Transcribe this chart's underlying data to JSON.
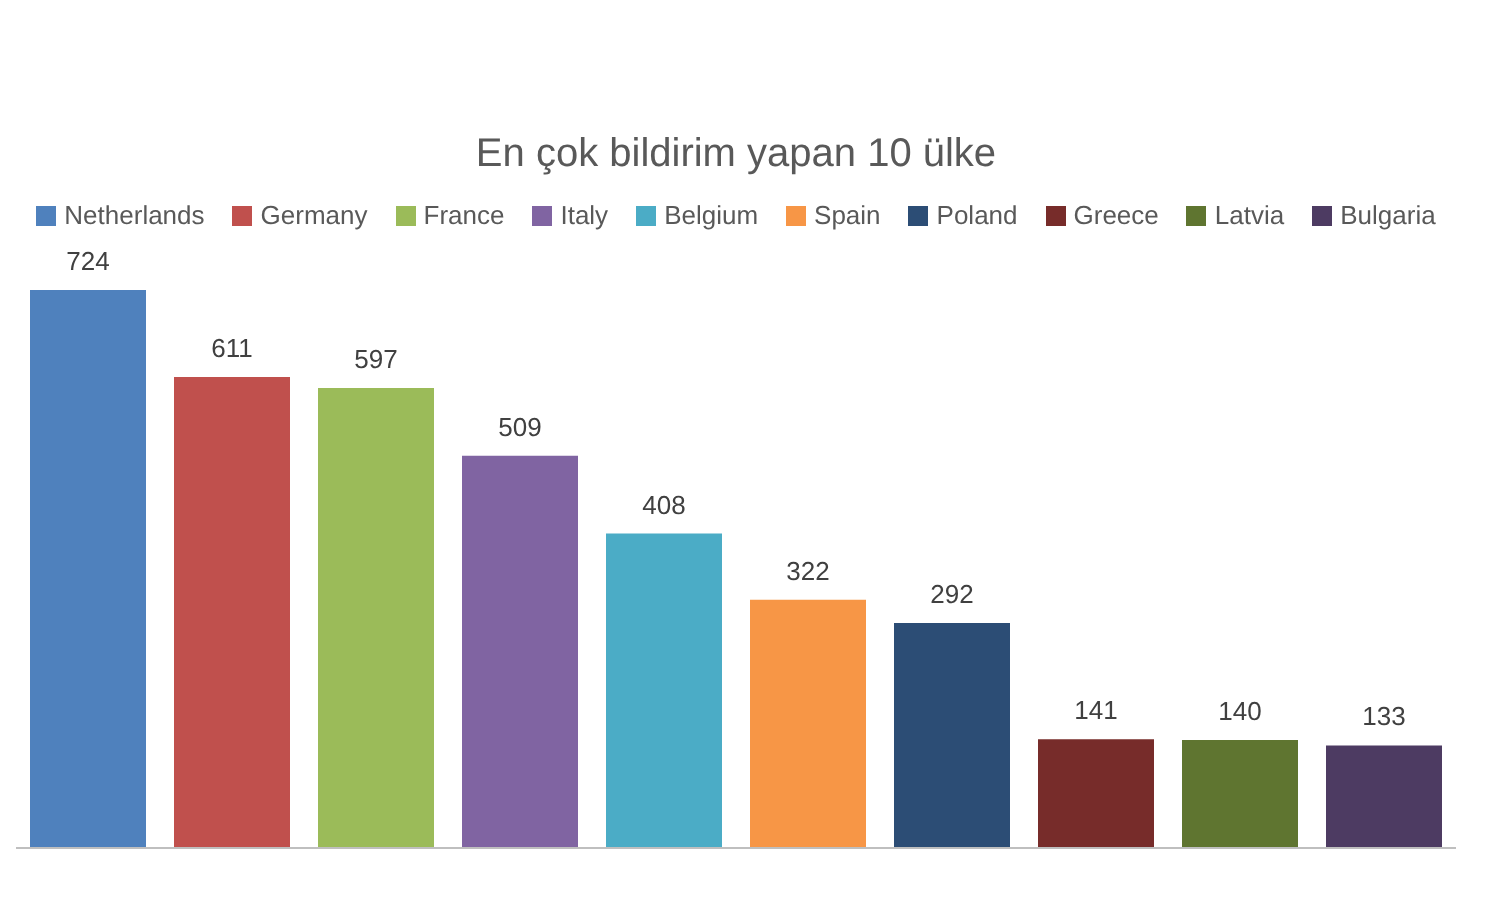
{
  "chart_data": {
    "type": "bar",
    "title": "En çok bildirim yapan 10 ülke",
    "categories": [
      null,
      null,
      null,
      null,
      null,
      null,
      null,
      null,
      null,
      null
    ],
    "legend": "top",
    "data_labels": true,
    "stacked": true,
    "series": [
      {
        "name": "Netherlands",
        "color": "#4f81bd",
        "values": [
          724,
          null,
          null,
          null,
          null,
          null,
          null,
          null,
          null,
          null
        ]
      },
      {
        "name": "Germany",
        "color": "#c0504d",
        "values": [
          null,
          611,
          null,
          null,
          null,
          null,
          null,
          null,
          null,
          null
        ]
      },
      {
        "name": "France",
        "color": "#9bbb59",
        "values": [
          null,
          null,
          597,
          null,
          null,
          null,
          null,
          null,
          null,
          null
        ]
      },
      {
        "name": "Italy",
        "color": "#8064a2",
        "values": [
          null,
          null,
          null,
          509,
          null,
          null,
          null,
          null,
          null,
          null
        ]
      },
      {
        "name": "Belgium",
        "color": "#4bacc6",
        "values": [
          null,
          null,
          null,
          null,
          408,
          null,
          null,
          null,
          null,
          null
        ]
      },
      {
        "name": "Spain",
        "color": "#f79646",
        "values": [
          null,
          null,
          null,
          null,
          null,
          322,
          null,
          null,
          null,
          null
        ]
      },
      {
        "name": "Poland",
        "color": "#2c4d75",
        "values": [
          null,
          null,
          null,
          null,
          null,
          null,
          292,
          null,
          null,
          null
        ]
      },
      {
        "name": "Greece",
        "color": "#772c2a",
        "values": [
          null,
          null,
          null,
          null,
          null,
          null,
          null,
          141,
          null,
          null
        ]
      },
      {
        "name": "Latvia",
        "color": "#5f7530",
        "values": [
          null,
          null,
          null,
          null,
          null,
          null,
          null,
          null,
          140,
          null
        ]
      },
      {
        "name": "Bulgaria",
        "color": "#4d3b62",
        "values": [
          null,
          null,
          null,
          null,
          null,
          null,
          null,
          null,
          null,
          133
        ]
      }
    ]
  }
}
